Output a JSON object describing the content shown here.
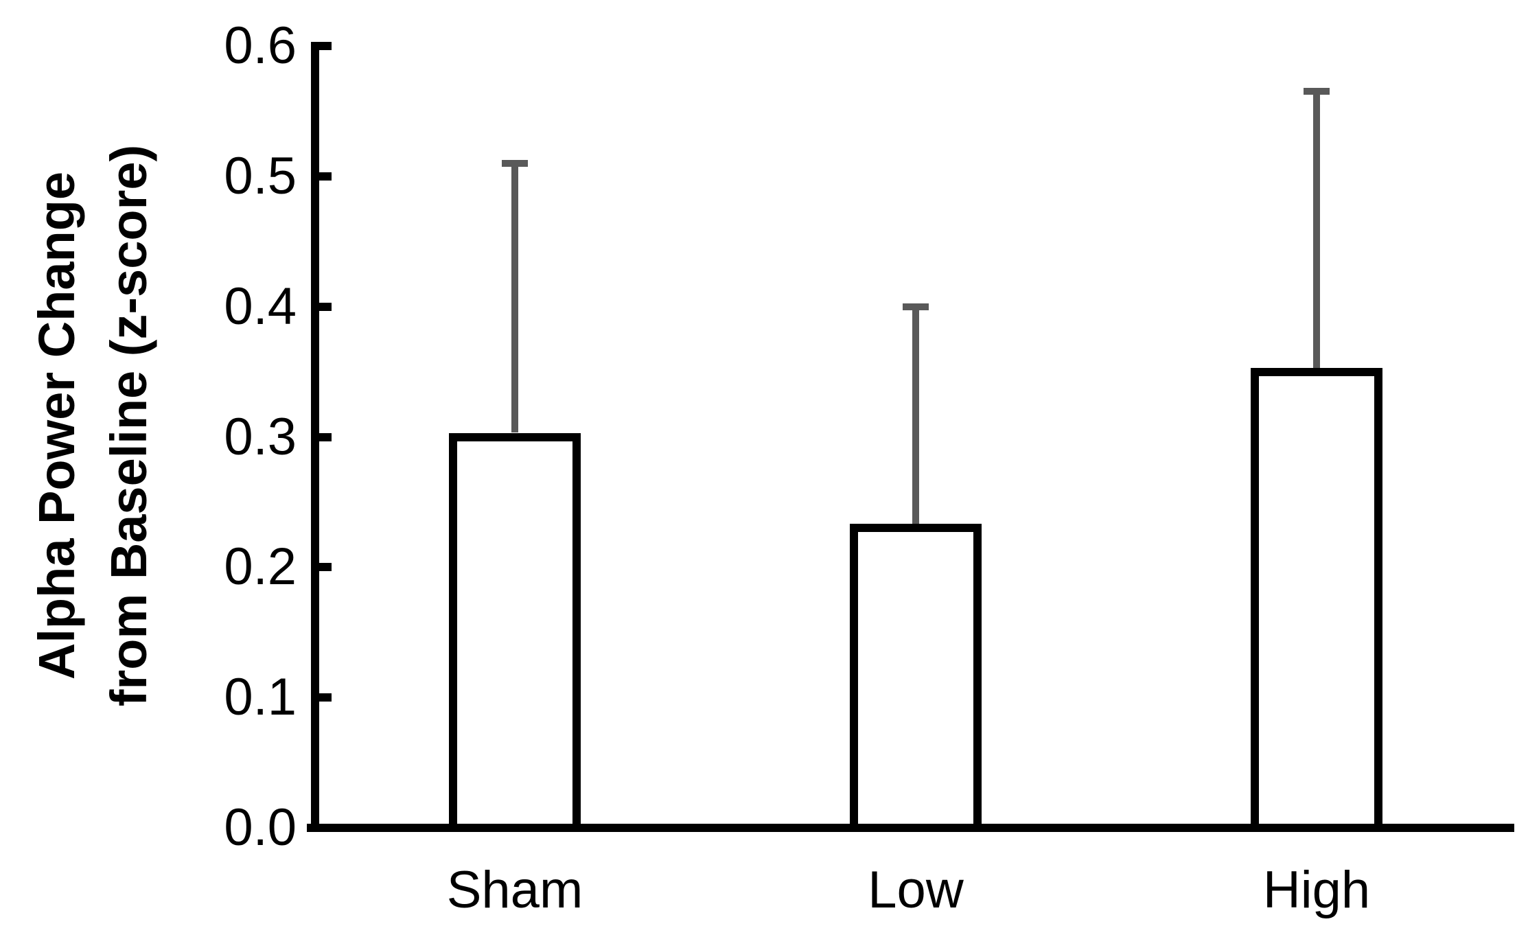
{
  "chart_data": {
    "type": "bar",
    "title": "",
    "ylabel_lines": [
      "Alpha Power Change",
      "from Baseline (z-score)"
    ],
    "xlabel": "",
    "categories": [
      "Sham",
      "Low",
      "High"
    ],
    "values": [
      0.3,
      0.23,
      0.35
    ],
    "error_plus": [
      0.21,
      0.17,
      0.215
    ],
    "error_direction": "upper-only",
    "ylim": [
      0,
      0.6
    ],
    "ytick_labels": [
      "0.0",
      "0.1",
      "0.2",
      "0.3",
      "0.4",
      "0.5",
      "0.6"
    ],
    "grid": false,
    "legend": "none",
    "series_styles": [
      {
        "name": "Sham",
        "color": "#2e79bd",
        "pattern": "checker"
      },
      {
        "name": "Low",
        "color": "#b23b33",
        "pattern": "diagonal-stripes"
      },
      {
        "name": "High",
        "color": "#70a13f",
        "pattern": "diamond-lattice"
      }
    ],
    "error_bar_color": "#595959",
    "axis_color": "#000000",
    "bar_border_color": "#000000"
  }
}
